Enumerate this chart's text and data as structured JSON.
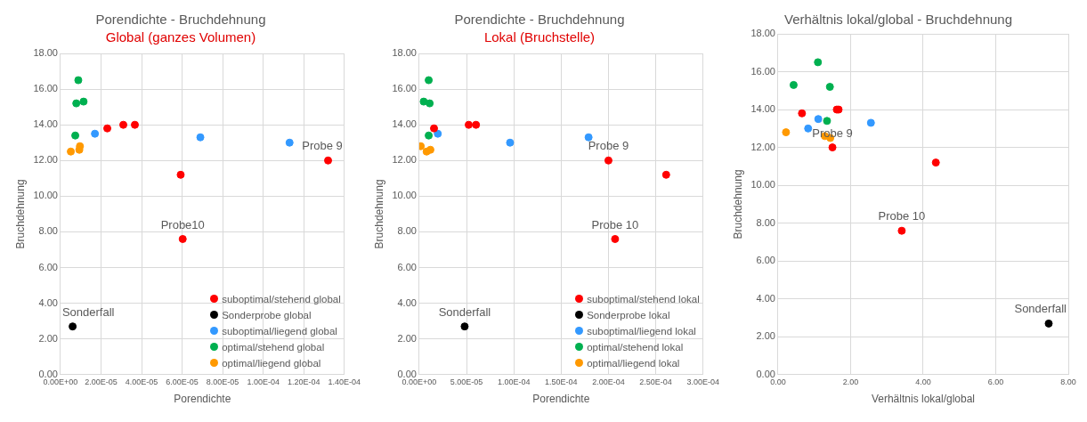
{
  "chart_data": [
    {
      "type": "scatter",
      "title": "Porendichte - Bruchdehnung",
      "subtitle": "Global (ganzes Volumen)",
      "xlabel": "Porendichte",
      "ylabel": "Bruchdehnung",
      "grid": true,
      "legend": "bottom right",
      "marker": "circle",
      "xlim": [
        0,
        0.00014
      ],
      "xticks": [
        {
          "value": 0,
          "label": "0.00E+00"
        },
        {
          "value": 2e-05,
          "label": "2.00E-05"
        },
        {
          "value": 4e-05,
          "label": "4.00E-05"
        },
        {
          "value": 6e-05,
          "label": "6.00E-05"
        },
        {
          "value": 8e-05,
          "label": "8.00E-05"
        },
        {
          "value": 0.0001,
          "label": "1.00E-04"
        },
        {
          "value": 0.00012,
          "label": "1.20E-04"
        },
        {
          "value": 0.00014,
          "label": "1.40E-04"
        }
      ],
      "ylim": [
        0,
        18
      ],
      "yticks": [
        {
          "value": 0,
          "label": "0.00"
        },
        {
          "value": 2,
          "label": "2.00"
        },
        {
          "value": 4,
          "label": "4.00"
        },
        {
          "value": 6,
          "label": "6.00"
        },
        {
          "value": 8,
          "label": "8.00"
        },
        {
          "value": 10,
          "label": "10.00"
        },
        {
          "value": 12,
          "label": "12.00"
        },
        {
          "value": 14,
          "label": "14.00"
        },
        {
          "value": 16,
          "label": "16.00"
        },
        {
          "value": 18,
          "label": "18.00"
        }
      ],
      "series": [
        {
          "name": "suboptimal/stehend global",
          "color": "#ff0000",
          "x": [
            2.31e-05,
            3.1e-05,
            3.67e-05,
            5.93e-05,
            6.03e-05,
            0.000132
          ],
          "values": [
            13.8,
            14.0,
            14.0,
            11.2,
            7.6,
            12.0
          ]
        },
        {
          "name": "Sonderprobe global",
          "color": "#000000",
          "x": [
            6e-06
          ],
          "values": [
            2.7
          ]
        },
        {
          "name": "suboptimal/liegend global",
          "color": "#3399ff",
          "x": [
            1.7e-05,
            6.9e-05,
            0.000113
          ],
          "values": [
            13.5,
            13.3,
            13.0
          ]
        },
        {
          "name": "optimal/stehend global",
          "color": "#00b050",
          "x": [
            8.8e-06,
            7.8e-06,
            1.14e-05,
            7.3e-06
          ],
          "values": [
            16.5,
            15.2,
            15.3,
            13.4
          ]
        },
        {
          "name": "optimal/liegend global",
          "color": "#ff9900",
          "x": [
            5.1e-06,
            9.6e-06,
            9.3e-06
          ],
          "values": [
            12.5,
            12.8,
            12.6
          ]
        }
      ],
      "annotations": [
        {
          "text": "Probe 9",
          "x": 0.000132,
          "y": 12.0
        },
        {
          "text": "Probe10",
          "x": 6.03e-05,
          "y": 7.6
        },
        {
          "text": "Sonderfall",
          "x": 6e-06,
          "y": 2.7
        }
      ]
    },
    {
      "type": "scatter",
      "title": "Porendichte - Bruchdehnung",
      "subtitle": "Lokal (Bruchstelle)",
      "xlabel": "Porendichte",
      "ylabel": "Bruchdehnung",
      "grid": true,
      "legend": "bottom right",
      "marker": "circle",
      "xlim": [
        0,
        0.0003
      ],
      "xticks": [
        {
          "value": 0,
          "label": "0.00E+00"
        },
        {
          "value": 5e-05,
          "label": "5.00E-05"
        },
        {
          "value": 0.0001,
          "label": "1.00E-04"
        },
        {
          "value": 0.00015,
          "label": "1.50E-04"
        },
        {
          "value": 0.0002,
          "label": "2.00E-04"
        },
        {
          "value": 0.00025,
          "label": "2.50E-04"
        },
        {
          "value": 0.0003,
          "label": "3.00E-04"
        }
      ],
      "ylim": [
        0,
        18
      ],
      "yticks": [
        {
          "value": 0,
          "label": "0.00"
        },
        {
          "value": 2,
          "label": "2.00"
        },
        {
          "value": 4,
          "label": "4.00"
        },
        {
          "value": 6,
          "label": "6.00"
        },
        {
          "value": 8,
          "label": "8.00"
        },
        {
          "value": 10,
          "label": "10.00"
        },
        {
          "value": 12,
          "label": "12.00"
        },
        {
          "value": 14,
          "label": "14.00"
        },
        {
          "value": 16,
          "label": "16.00"
        },
        {
          "value": 18,
          "label": "18.00"
        }
      ],
      "series": [
        {
          "name": "suboptimal/stehend lokal",
          "color": "#ff0000",
          "x": [
            1.56e-05,
            5.23e-05,
            6e-05,
            0.0002,
            0.000261,
            0.000207
          ],
          "values": [
            13.8,
            14.0,
            14.0,
            12.0,
            11.2,
            7.6
          ]
        },
        {
          "name": "Sonderprobe lokal",
          "color": "#000000",
          "x": [
            4.8e-05
          ],
          "values": [
            2.7
          ]
        },
        {
          "name": "suboptimal/liegend lokal",
          "color": "#3399ff",
          "x": [
            1.96e-05,
            9.6e-05,
            0.000179
          ],
          "values": [
            13.5,
            13.0,
            13.3
          ]
        },
        {
          "name": "optimal/stehend lokal",
          "color": "#00b050",
          "x": [
            1e-05,
            4.7e-06,
            1.1e-05,
            1e-05
          ],
          "values": [
            16.5,
            15.3,
            15.2,
            13.4
          ]
        },
        {
          "name": "optimal/liegend lokal",
          "color": "#ff9900",
          "x": [
            1.6e-06,
            7.8e-06,
            1.18e-05
          ],
          "values": [
            12.8,
            12.5,
            12.6
          ]
        }
      ],
      "annotations": [
        {
          "text": "Probe 9",
          "x": 0.0002,
          "y": 12.0
        },
        {
          "text": "Probe 10",
          "x": 0.000207,
          "y": 7.6
        },
        {
          "text": "Sonderfall",
          "x": 4.8e-05,
          "y": 2.7
        }
      ]
    },
    {
      "type": "scatter",
      "title": "Verhältnis lokal/global - Bruchdehnung",
      "xlabel": "Verhältnis lokal/global",
      "ylabel": "Bruchdehnung",
      "grid": true,
      "marker": "circle",
      "xlim": [
        0,
        8
      ],
      "xticks": [
        {
          "value": 0,
          "label": "0.00"
        },
        {
          "value": 2,
          "label": "2.00"
        },
        {
          "value": 4,
          "label": "4.00"
        },
        {
          "value": 6,
          "label": "6.00"
        },
        {
          "value": 8,
          "label": "8.00"
        }
      ],
      "ylim": [
        0,
        18
      ],
      "yticks": [
        {
          "value": 0,
          "label": "0.00"
        },
        {
          "value": 2,
          "label": "2.00"
        },
        {
          "value": 4,
          "label": "4.00"
        },
        {
          "value": 6,
          "label": "6.00"
        },
        {
          "value": 8,
          "label": "8.00"
        },
        {
          "value": 10,
          "label": "10.00"
        },
        {
          "value": 12,
          "label": "12.00"
        },
        {
          "value": 14,
          "label": "14.00"
        },
        {
          "value": 16,
          "label": "16.00"
        },
        {
          "value": 18,
          "label": "18.00"
        }
      ],
      "series": [
        {
          "color": "#ff0000",
          "x": [
            0.66,
            1.62,
            1.67,
            1.5,
            4.35,
            3.41
          ],
          "values": [
            13.8,
            14.0,
            14.0,
            12.0,
            11.2,
            7.6
          ]
        },
        {
          "color": "#000000",
          "x": [
            7.46
          ],
          "values": [
            2.7
          ]
        },
        {
          "color": "#3399ff",
          "x": [
            1.11,
            0.83,
            2.56
          ],
          "values": [
            13.5,
            13.0,
            13.3
          ]
        },
        {
          "color": "#00b050",
          "x": [
            1.1,
            0.43,
            1.43,
            1.35
          ],
          "values": [
            16.5,
            15.3,
            15.2,
            13.4
          ]
        },
        {
          "color": "#ff9900",
          "x": [
            0.22,
            1.29,
            1.44
          ],
          "values": [
            12.8,
            12.6,
            12.5
          ]
        }
      ],
      "annotations": [
        {
          "text": "Probe 9",
          "x": 1.5,
          "y": 12.0
        },
        {
          "text": "Probe 10",
          "x": 3.41,
          "y": 7.6
        },
        {
          "text": "Sonderfall",
          "x": 7.46,
          "y": 2.7
        }
      ]
    }
  ]
}
